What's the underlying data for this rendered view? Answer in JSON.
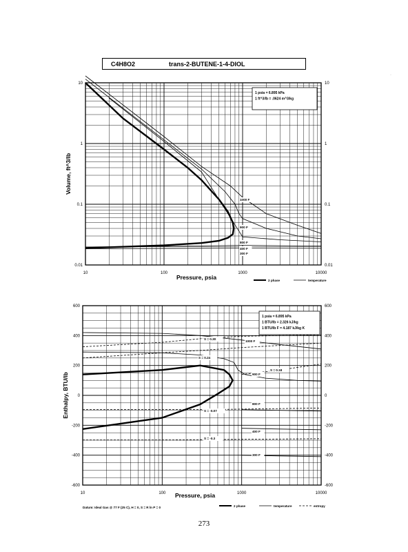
{
  "header": {
    "formula": "C4H8O2",
    "name": "trans-2-BUTENE-1-4-DIOL"
  },
  "page_number": "273",
  "chart_data": [
    {
      "type": "line",
      "xscale": "log",
      "yscale": "log",
      "xlim": [
        10,
        10000
      ],
      "ylim": [
        0.01,
        10
      ],
      "xlabel": "Pressure,  psia",
      "ylabel": "Volume,  ft^3/lb",
      "xticks": [
        "10",
        "100",
        "1000",
        "10000"
      ],
      "yticks": [
        "0.01",
        "0.1",
        "1",
        "10"
      ],
      "grid": true,
      "notes": [
        "1 psia  =  6.895 kPa",
        "1 ft^3/lb  =  .0624 m^3/kg"
      ],
      "legend": [
        "2 phase",
        "temperature"
      ],
      "series": [
        {
          "name": "2 phase",
          "kind": "saturation",
          "x": [
            10,
            30,
            100,
            200,
            300,
            500,
            650,
            750,
            770,
            750,
            650,
            500,
            300,
            100,
            10
          ],
          "y": [
            10,
            2.6,
            0.8,
            0.4,
            0.25,
            0.12,
            0.075,
            0.05,
            0.04,
            0.032,
            0.028,
            0.025,
            0.023,
            0.021,
            0.019
          ]
        },
        {
          "name": "1000 F",
          "kind": "temperature",
          "x": [
            10,
            100,
            300,
            700,
            1000,
            2000,
            5000,
            10000
          ],
          "y": [
            13,
            1.3,
            0.42,
            0.2,
            0.13,
            0.07,
            0.045,
            0.033
          ]
        },
        {
          "name": "900 F",
          "kind": "temperature",
          "x": [
            10,
            100,
            300,
            600,
            800,
            900,
            1000,
            2000,
            5000,
            10000
          ],
          "y": [
            11.5,
            1.15,
            0.38,
            0.16,
            0.1,
            0.07,
            0.058,
            0.04,
            0.03,
            0.027
          ]
        },
        {
          "name": "800 F",
          "kind": "temperature",
          "x": [
            20,
            100,
            300,
            1000,
            3000,
            10000
          ],
          "y": [
            5.6,
            1.08,
            0.34,
            0.029,
            0.026,
            0.024
          ]
        },
        {
          "name": "400 F",
          "kind": "temperature",
          "x": [
            10,
            1000,
            10000
          ],
          "y": [
            0.0195,
            0.021,
            0.0205
          ]
        },
        {
          "name": "300 F",
          "kind": "temperature",
          "x": [
            10,
            1000,
            10000
          ],
          "y": [
            0.0185,
            0.019,
            0.0188
          ]
        }
      ],
      "labels": [
        "1000 F",
        "900 F",
        "800 F",
        "400 F",
        "300 F"
      ]
    },
    {
      "type": "line",
      "xscale": "log",
      "xlim": [
        10,
        10000
      ],
      "ylim": [
        -600,
        600
      ],
      "xlabel": "Pressure,  psia",
      "ylabel": "Enthalpy,  BTU/lb",
      "xticks": [
        "10",
        "100",
        "1000",
        "10000"
      ],
      "yticks": [
        "600",
        "400",
        "200",
        "0",
        "-200",
        "-400",
        "-600"
      ],
      "grid": true,
      "notes": [
        "1 psia  =  6.895 kPa",
        "1 BTU/lb  =  2.326 kJ/kg",
        "1 BTU/lb F  =  4.187 kJ/kg K"
      ],
      "footnote": "Datum: Ideal Gas @ 77 F (25 C),  H = 0,  S = R ln P = 0",
      "legend": [
        "2 phase",
        "temperature",
        "entropy"
      ],
      "series": [
        {
          "name": "2 phase",
          "kind": "saturation",
          "x": [
            10,
            100,
            300,
            600,
            700,
            770,
            700,
            500,
            300,
            100,
            10
          ],
          "y": [
            140,
            170,
            200,
            170,
            140,
            100,
            60,
            10,
            -60,
            -150,
            -225
          ]
        },
        {
          "name": "1000 F",
          "kind": "temperature",
          "x": [
            10,
            100,
            300,
            1000,
            3000,
            10000
          ],
          "y": [
            420,
            415,
            400,
            370,
            340,
            310
          ]
        },
        {
          "name": "900 F",
          "kind": "temperature",
          "x": [
            10,
            100,
            300,
            600,
            800,
            900,
            1100,
            2000,
            5000,
            10000
          ],
          "y": [
            290,
            285,
            270,
            245,
            220,
            170,
            140,
            115,
            100,
            95
          ]
        },
        {
          "name": "800 F",
          "kind": "temperature",
          "x": [
            1000,
            3000,
            10000
          ],
          "y": [
            -95,
            -100,
            -105
          ]
        },
        {
          "name": "400 F",
          "kind": "temperature",
          "x": [
            1000,
            3000,
            10000
          ],
          "y": [
            -220,
            -225,
            -230
          ]
        },
        {
          "name": "300 F",
          "kind": "temperature",
          "x": [
            1000,
            3000,
            10000
          ],
          "y": [
            -400,
            -405,
            -410
          ]
        },
        {
          "name": "S = 0.30",
          "kind": "entropy",
          "x": [
            10,
            100,
            400,
            1000,
            3000,
            10000
          ],
          "y": [
            325,
            355,
            385,
            395,
            400,
            405
          ]
        },
        {
          "name": "S = 0.24",
          "kind": "entropy",
          "x": [
            10,
            100,
            400,
            1000,
            10000
          ],
          "y": [
            250,
            285,
            305,
            320,
            350
          ]
        },
        {
          "name": "S = 0.18",
          "kind": "entropy",
          "x": [
            1000,
            3000,
            10000
          ],
          "y": [
            140,
            170,
            210
          ]
        },
        {
          "name": "S = -0.07",
          "kind": "entropy",
          "x": [
            10,
            100,
            400,
            1000,
            10000
          ],
          "y": [
            -95,
            -95,
            -95,
            -92,
            -85
          ]
        },
        {
          "name": "S = -0.3",
          "kind": "entropy",
          "x": [
            10,
            100,
            400,
            1000,
            10000
          ],
          "y": [
            -298,
            -298,
            -296,
            -294,
            -290
          ]
        }
      ],
      "labels": [
        "S = 0.30",
        "S = 0.24",
        "S = 0.18",
        "1000 F",
        "900 F",
        "800 F",
        "S = -0.07",
        "S = -0.3",
        "400 F",
        "300 F"
      ]
    }
  ]
}
